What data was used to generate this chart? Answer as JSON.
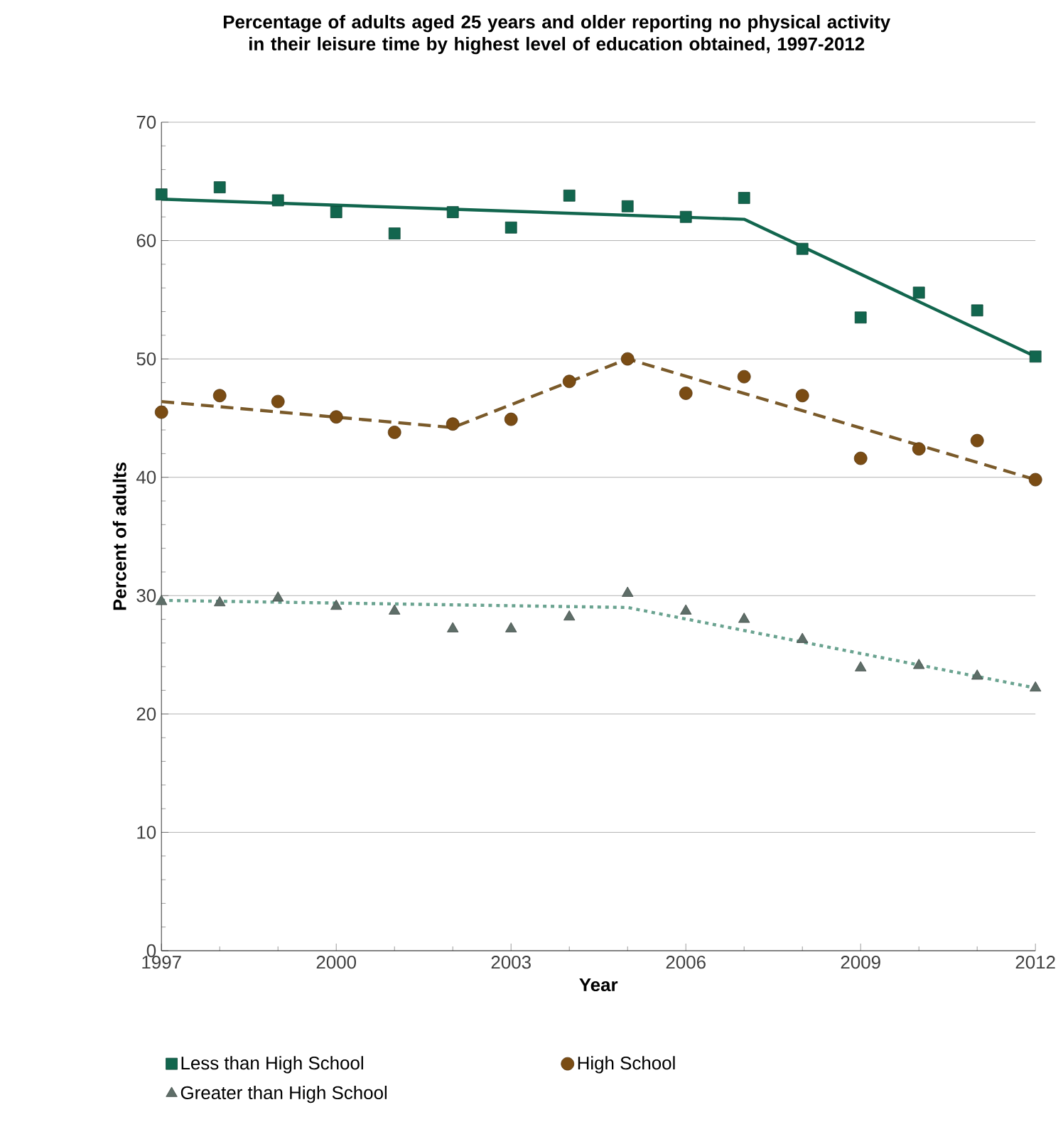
{
  "chart_data": {
    "type": "scatter",
    "title": "Percentage of adults aged 25 years and older reporting no physical activity in their leisure time by highest level of education obtained, 1997-2012",
    "xlabel": "Year",
    "ylabel": "Percent of adults",
    "x": [
      1997,
      1998,
      1999,
      2000,
      2001,
      2002,
      2003,
      2004,
      2005,
      2006,
      2007,
      2008,
      2009,
      2010,
      2011,
      2012
    ],
    "series": [
      {
        "name": "Less than High School",
        "color": "#12664e",
        "marker": "square",
        "values": [
          63.9,
          64.5,
          63.4,
          62.4,
          60.6,
          62.4,
          61.1,
          63.8,
          62.9,
          62.0,
          63.6,
          59.3,
          53.5,
          55.6,
          54.1,
          50.2
        ]
      },
      {
        "name": "High School",
        "color": "#7a4c14",
        "marker": "circle",
        "values": [
          45.5,
          46.9,
          46.4,
          45.1,
          43.8,
          44.5,
          44.9,
          48.1,
          50.0,
          47.1,
          48.5,
          46.9,
          41.6,
          42.4,
          43.1,
          39.8
        ]
      },
      {
        "name": "Greater than High School",
        "color": "#5e6e68",
        "marker": "triangle",
        "values": [
          29.5,
          29.4,
          29.8,
          29.1,
          28.7,
          27.2,
          27.2,
          28.2,
          30.2,
          28.7,
          28.0,
          26.3,
          23.9,
          24.1,
          23.2,
          22.2
        ]
      },
      {
        "type": "line",
        "color": "#12664e",
        "line_style": "solid",
        "x": [
          1997,
          2007,
          2012
        ],
        "values": [
          63.5,
          61.8,
          50.2
        ]
      },
      {
        "type": "line",
        "color": "#7a5a2a",
        "line_style": "dashed",
        "x": [
          1997,
          2002,
          2005,
          2012
        ],
        "values": [
          46.4,
          44.2,
          50.0,
          39.8
        ]
      },
      {
        "type": "line",
        "color": "#6aa390",
        "line_style": "dotted",
        "x": [
          1997,
          2005,
          2012
        ],
        "values": [
          29.6,
          29.0,
          22.2
        ]
      }
    ],
    "xlim": [
      1997,
      2012
    ],
    "xticks": [
      1997,
      2000,
      2003,
      2006,
      2009,
      2012
    ],
    "ylim": [
      0,
      70
    ],
    "yticks": [
      0,
      10,
      20,
      30,
      40,
      50,
      60,
      70
    ],
    "grid": "y",
    "legend": "bottom"
  }
}
